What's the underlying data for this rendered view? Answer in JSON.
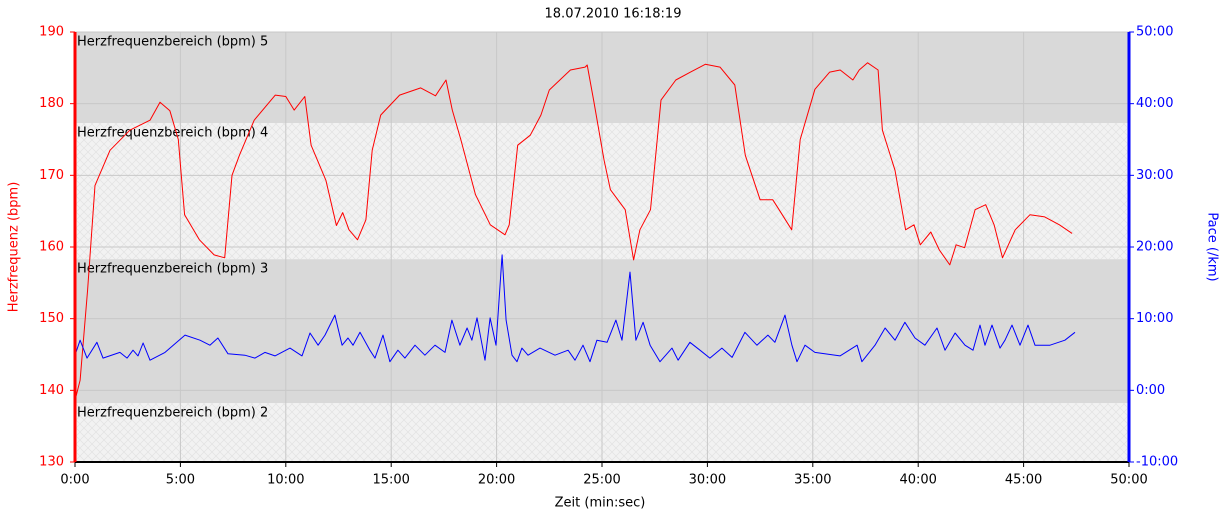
{
  "chart_data": {
    "type": "line",
    "title": "18.07.2010 16:18:19",
    "xlabel": "Zeit (min:sec)",
    "ylabel": "Herzfrequenz (bpm)",
    "y2label": "Pace (/km)",
    "xlim": [
      0,
      50
    ],
    "xticks": [
      {
        "value": 0,
        "label": "0:00"
      },
      {
        "value": 5,
        "label": "5:00"
      },
      {
        "value": 10,
        "label": "10:00"
      },
      {
        "value": 15,
        "label": "15:00"
      },
      {
        "value": 20,
        "label": "20:00"
      },
      {
        "value": 25,
        "label": "25:00"
      },
      {
        "value": 30,
        "label": "30:00"
      },
      {
        "value": 35,
        "label": "35:00"
      },
      {
        "value": 40,
        "label": "40:00"
      },
      {
        "value": 45,
        "label": "45:00"
      },
      {
        "value": 50,
        "label": "50:00"
      }
    ],
    "ylim": [
      130,
      190
    ],
    "yticks": [
      130,
      140,
      150,
      160,
      170,
      180,
      190
    ],
    "y2lim": [
      -10,
      50
    ],
    "y2ticks": [
      {
        "value": -10,
        "label": "-10:00"
      },
      {
        "value": 0,
        "label": "0:00"
      },
      {
        "value": 10,
        "label": "10:00"
      },
      {
        "value": 20,
        "label": "20:00"
      },
      {
        "value": 30,
        "label": "30:00"
      },
      {
        "value": 40,
        "label": "40:00"
      },
      {
        "value": 50,
        "label": "50:00"
      }
    ],
    "grid": true,
    "zones": [
      {
        "label": "Herzfrequenzbereich (bpm) 5",
        "from": 177.3,
        "to": 190,
        "color": "#d9d9d9",
        "hatched": false
      },
      {
        "label": "Herzfrequenzbereich (bpm) 4",
        "from": 158.3,
        "to": 177.3,
        "color": "#f2f2f2",
        "hatched": true
      },
      {
        "label": "Herzfrequenzbereich (bpm) 3",
        "from": 138.2,
        "to": 158.3,
        "color": "#d9d9d9",
        "hatched": false
      },
      {
        "label": "Herzfrequenzbereich (bpm) 2",
        "from": 130,
        "to": 138.2,
        "color": "#f2f2f2",
        "hatched": true
      }
    ],
    "series": [
      {
        "color": "#ff0000",
        "x": [
          0,
          0.24,
          0.6,
          0.95,
          1.66,
          2.6,
          3.56,
          4.03,
          4.5,
          4.9,
          5.2,
          5.9,
          6.6,
          7.1,
          7.45,
          7.8,
          8.5,
          9.5,
          10,
          10.4,
          10.9,
          11.2,
          11.9,
          12.4,
          12.7,
          13,
          13.4,
          13.8,
          14.1,
          14.5,
          15.4,
          16.4,
          17.1,
          17.6,
          17.9,
          18.3,
          19,
          19.7,
          20.4,
          20.6,
          21,
          21.6,
          22.1,
          22.5,
          23.5,
          24.2,
          24.3,
          24.6,
          25.1,
          25.4,
          26.1,
          26.5,
          26.8,
          27.3,
          27.8,
          28.5,
          29.2,
          29.9,
          30.6,
          31.3,
          31.8,
          32.5,
          33.1,
          33.4,
          34,
          34.4,
          35.1,
          35.8,
          36.3,
          36.9,
          37.2,
          37.6,
          38.1,
          38.3,
          38.9,
          39.4,
          39.8,
          40.1,
          40.6,
          41,
          41.5,
          41.8,
          42.2,
          42.7,
          43.2,
          43.6,
          44,
          44.6,
          45.3,
          46,
          46.7,
          47.3
        ],
        "values": [
          138.6,
          141.4,
          154,
          168.6,
          173.5,
          176.3,
          177.7,
          180.2,
          179,
          175,
          164.5,
          161,
          158.9,
          158.5,
          170,
          172.8,
          177.7,
          181.2,
          181,
          179.1,
          181,
          174.2,
          169.3,
          163,
          164.8,
          162.4,
          161,
          163.8,
          173.5,
          178.4,
          181.2,
          182.2,
          181.1,
          183.3,
          179.1,
          175,
          167.3,
          163.1,
          161.7,
          163.1,
          174.2,
          175.6,
          178.4,
          181.9,
          184.7,
          185.1,
          185.4,
          180.5,
          172.1,
          168,
          165.2,
          158.2,
          162.4,
          165.2,
          180.5,
          183.3,
          184.4,
          185.5,
          185.1,
          182.6,
          172.8,
          166.6,
          166.6,
          165.2,
          162.4,
          175,
          182,
          184.4,
          184.7,
          183.3,
          184.7,
          185.7,
          184.7,
          176.3,
          170.7,
          162.4,
          163.1,
          160.3,
          162.1,
          159.6,
          157.5,
          160.3,
          159.9,
          165.2,
          165.9,
          163.1,
          158.5,
          162.4,
          164.5,
          164.2,
          163.1,
          161.9
        ]
      },
      {
        "color": "#0000ff",
        "axis": "y2",
        "x": [
          0,
          0.24,
          0.57,
          1.04,
          1.33,
          2.13,
          2.47,
          2.75,
          2.99,
          3.23,
          3.56,
          4.27,
          5.22,
          5.93,
          6.4,
          6.78,
          7.26,
          8.06,
          8.54,
          9.01,
          9.49,
          10.2,
          10.77,
          11.15,
          11.53,
          11.86,
          12.33,
          12.67,
          12.95,
          13.19,
          13.52,
          13.99,
          14.23,
          14.61,
          14.94,
          15.32,
          15.65,
          16.13,
          16.6,
          17.08,
          17.55,
          17.88,
          18.26,
          18.6,
          18.83,
          19.07,
          19.45,
          19.69,
          19.97,
          20.26,
          20.45,
          20.73,
          20.97,
          21.2,
          21.49,
          22.06,
          22.77,
          23.39,
          23.72,
          24.1,
          24.43,
          24.76,
          25.24,
          25.66,
          25.95,
          26.33,
          26.61,
          26.95,
          27.28,
          27.75,
          28.32,
          28.61,
          29.17,
          29.65,
          30.12,
          30.69,
          31.17,
          31.78,
          32.35,
          32.87,
          33.2,
          33.68,
          34.01,
          34.25,
          34.63,
          35.1,
          36.29,
          37.1,
          37.33,
          37.95,
          38.43,
          38.9,
          39.37,
          39.85,
          40.32,
          40.89,
          41.27,
          41.75,
          42.22,
          42.6,
          42.93,
          43.17,
          43.5,
          43.88,
          44.12,
          44.45,
          44.83,
          45.21,
          45.54,
          46.25,
          46.96,
          47.44
        ],
        "values": [
          4.9,
          7.0,
          4.5,
          6.7,
          4.5,
          5.3,
          4.5,
          5.6,
          4.8,
          6.6,
          4.2,
          5.3,
          7.7,
          7.0,
          6.3,
          7.3,
          5.1,
          4.9,
          4.5,
          5.3,
          4.8,
          5.9,
          4.8,
          8.0,
          6.3,
          7.7,
          10.5,
          6.3,
          7.3,
          6.3,
          8.1,
          5.6,
          4.5,
          7.7,
          4.0,
          5.6,
          4.5,
          6.3,
          4.9,
          6.3,
          5.3,
          9.8,
          6.3,
          8.7,
          7.0,
          10.1,
          4.2,
          10.1,
          6.3,
          18.9,
          9.8,
          4.9,
          4.0,
          5.9,
          4.9,
          5.9,
          4.9,
          5.6,
          4.2,
          6.3,
          4.0,
          7.0,
          6.7,
          9.8,
          7.0,
          16.5,
          7.0,
          9.5,
          6.3,
          4.0,
          5.9,
          4.2,
          6.7,
          5.6,
          4.5,
          5.9,
          4.6,
          8.1,
          6.3,
          7.7,
          6.7,
          10.5,
          6.3,
          4.0,
          6.3,
          5.3,
          4.8,
          6.3,
          4.0,
          6.3,
          8.7,
          7.0,
          9.5,
          7.3,
          6.3,
          8.7,
          5.6,
          8.0,
          6.3,
          5.6,
          9.1,
          6.3,
          9.1,
          5.9,
          7.0,
          9.1,
          6.3,
          9.1,
          6.3,
          6.3,
          7.0,
          8.1
        ]
      }
    ]
  }
}
